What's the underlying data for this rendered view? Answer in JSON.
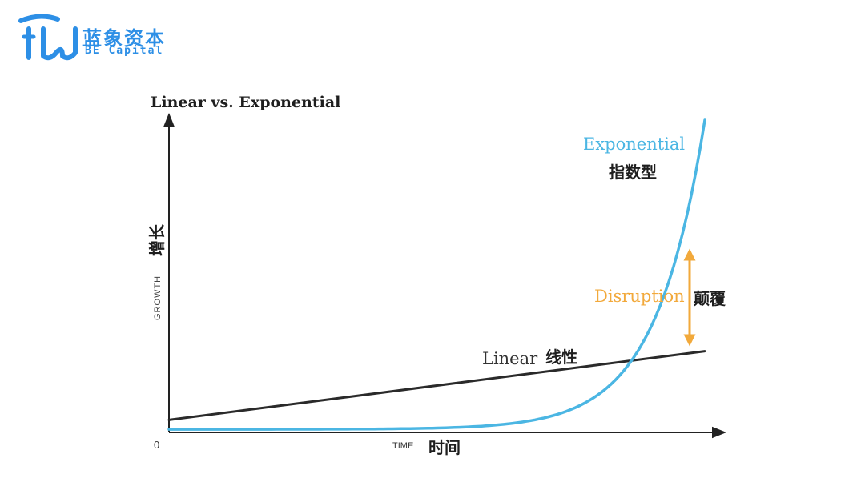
{
  "brand": {
    "name_cn": "蓝象资本",
    "name_en": "BE Capital",
    "color": "#2d8fe6"
  },
  "chart_data": {
    "type": "line",
    "title": "Linear vs. Exponential",
    "xlabel": "TIME",
    "xlabel_cn": "时间",
    "ylabel": "GROWTH",
    "ylabel_cn": "增长",
    "origin_label": "0",
    "axes_ticks": false,
    "grid": false,
    "series": [
      {
        "name": "Linear",
        "label_cn": "线性",
        "color": "#2a2a2a",
        "start": 0.04,
        "end": 0.26
      },
      {
        "name": "Exponential",
        "label_cn": "指数型",
        "color": "#4bb6e3",
        "start": 0.01,
        "end": 1.0
      }
    ],
    "annotation": {
      "label": "Disruption",
      "label_cn": "颠覆",
      "color": "#f2a93b"
    }
  }
}
